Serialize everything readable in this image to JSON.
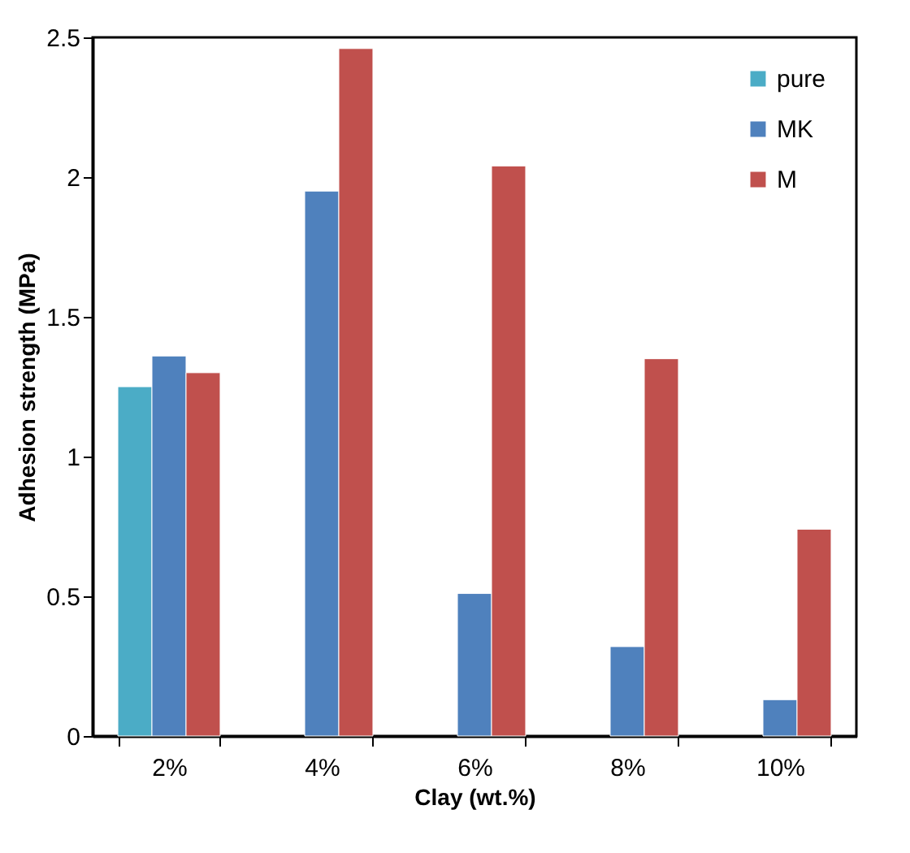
{
  "chart_data": {
    "type": "bar",
    "xlabel": "Clay (wt.%)",
    "ylabel": "Adhesion strength (MPa)",
    "categories": [
      "2%",
      "4%",
      "6%",
      "8%",
      "10%"
    ],
    "series": [
      {
        "name": "pure",
        "color": "#4bacc6",
        "values": [
          1.25,
          null,
          null,
          null,
          null
        ]
      },
      {
        "name": "MK",
        "color": "#4f81bd",
        "values": [
          1.36,
          1.95,
          0.51,
          0.32,
          0.13
        ]
      },
      {
        "name": "M",
        "color": "#c0504d",
        "values": [
          1.3,
          2.46,
          2.04,
          1.35,
          0.74
        ]
      }
    ],
    "ylim": [
      0,
      2.5
    ],
    "yticks": [
      0,
      0.5,
      1,
      1.5,
      2,
      2.5
    ],
    "grid": false,
    "legend": "top right"
  }
}
